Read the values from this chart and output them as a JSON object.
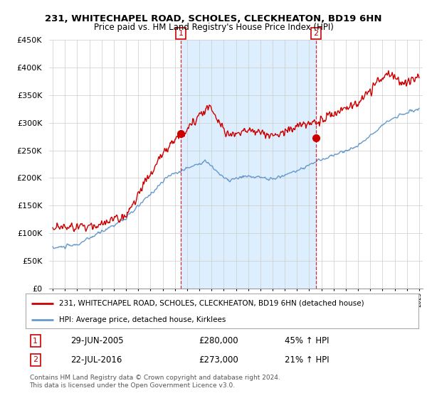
{
  "title": "231, WHITECHAPEL ROAD, SCHOLES, CLECKHEATON, BD19 6HN",
  "subtitle": "Price paid vs. HM Land Registry's House Price Index (HPI)",
  "legend_line1": "231, WHITECHAPEL ROAD, SCHOLES, CLECKHEATON, BD19 6HN (detached house)",
  "legend_line2": "HPI: Average price, detached house, Kirklees",
  "annotation1_date": "29-JUN-2005",
  "annotation1_price": "£280,000",
  "annotation1_hpi": "45% ↑ HPI",
  "annotation2_date": "22-JUL-2016",
  "annotation2_price": "£273,000",
  "annotation2_hpi": "21% ↑ HPI",
  "footer": "Contains HM Land Registry data © Crown copyright and database right 2024.\nThis data is licensed under the Open Government Licence v3.0.",
  "sale1_year": 2005.5,
  "sale1_price": 280000,
  "sale2_year": 2016.55,
  "sale2_price": 273000,
  "red_color": "#cc0000",
  "blue_color": "#6699cc",
  "shade_color": "#ddeeff",
  "ylim": [
    0,
    450000
  ],
  "xlim_start": 1994.7,
  "xlim_end": 2025.3
}
